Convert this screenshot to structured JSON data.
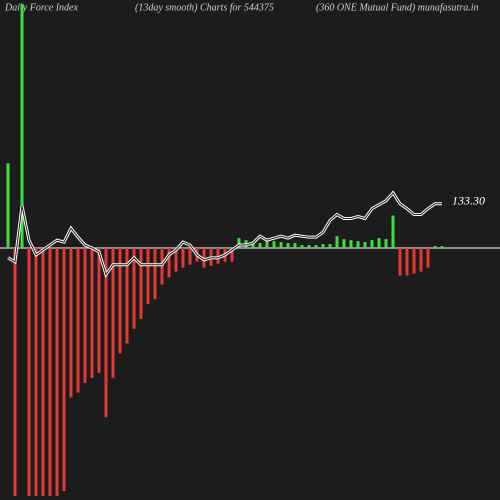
{
  "chart_data": {
    "type": "force-index",
    "titles": [
      "Daily Force  Index",
      "(13day smooth) Charts for 544375",
      "(360  ONE Mutual Fund) munafasutra.in"
    ],
    "background": "#1c1c1c",
    "up_color": "#3de03d",
    "down_color": "#e53935",
    "bars": {
      "values": [
        86,
        -252,
        248,
        -252,
        -252,
        -252,
        -252,
        -252,
        -247,
        -152,
        -147,
        -137,
        -132,
        -127,
        -172,
        -132,
        -107,
        -97,
        -82,
        -72,
        -57,
        -52,
        -37,
        -30,
        -24,
        -20,
        -17,
        -14,
        -20,
        -18,
        -16,
        -14,
        -14,
        10,
        8,
        6,
        5,
        8,
        7,
        6,
        5,
        5,
        3,
        3,
        3,
        4,
        4,
        12,
        9,
        8,
        7,
        6,
        8,
        10,
        9,
        33,
        -28,
        -28,
        -26,
        -24,
        -20,
        2,
        2
      ]
    },
    "line": {
      "color": "#ffffff",
      "label": "133.30",
      "values": [
        -10,
        -14,
        43,
        8,
        -7,
        -2,
        3,
        8,
        6,
        20,
        11,
        3,
        0,
        -4,
        -27,
        -17,
        -17,
        -17,
        -10,
        -17,
        -17,
        -17,
        -17,
        -7,
        -2,
        6,
        3,
        -7,
        -12,
        -10,
        -10,
        -7,
        -2,
        3,
        3,
        5,
        12,
        8,
        10,
        12,
        10,
        13,
        12,
        11,
        11,
        16,
        28,
        34,
        30,
        30,
        32,
        30,
        40,
        44,
        48,
        56,
        45,
        40,
        34,
        34,
        40,
        45,
        45
      ]
    }
  }
}
